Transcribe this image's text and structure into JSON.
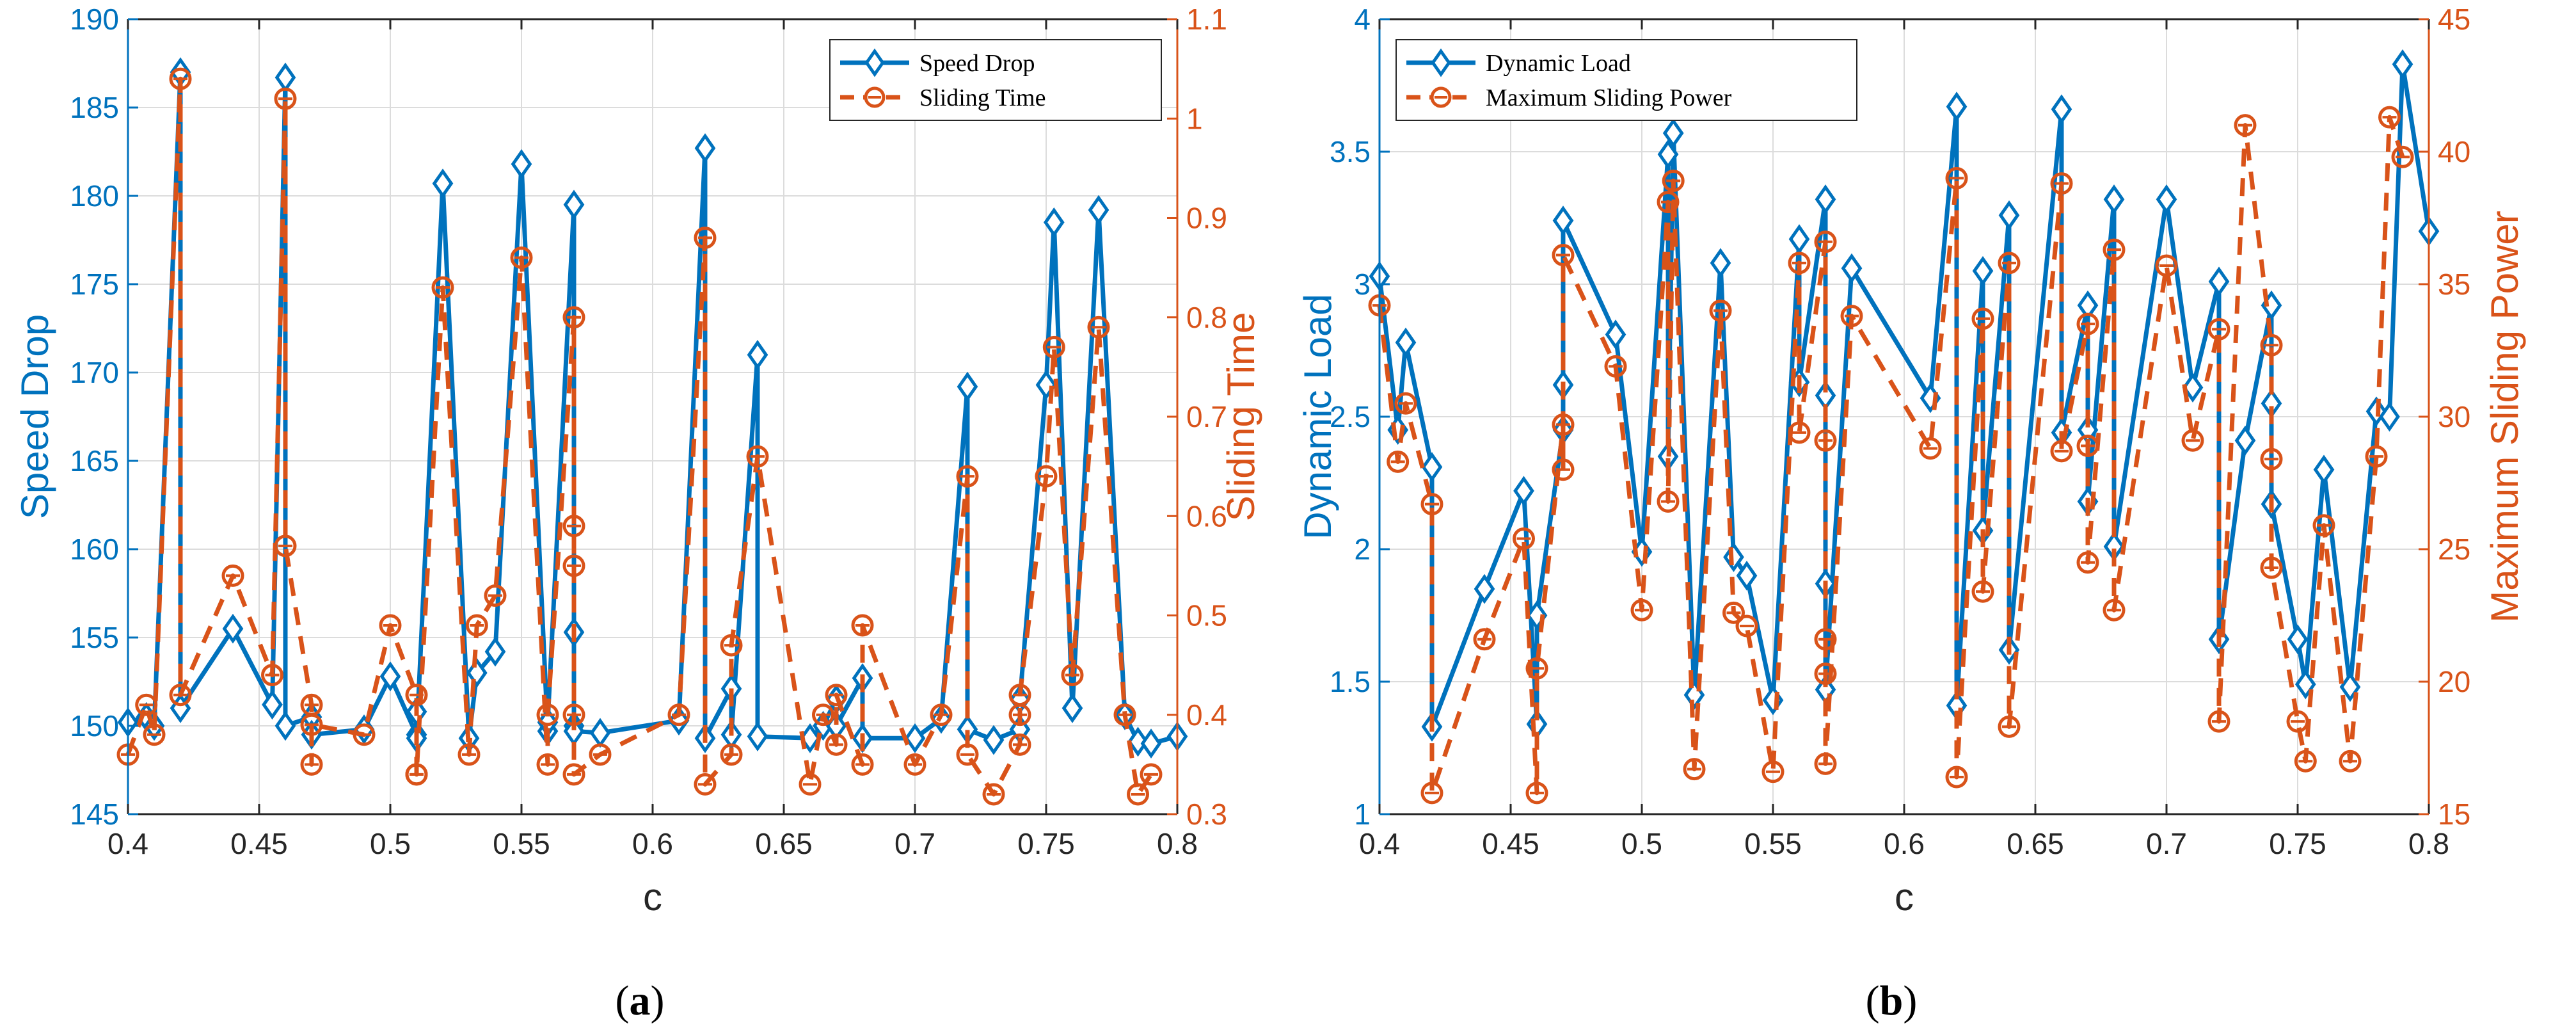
{
  "chart_data": [
    {
      "type": "line",
      "caption_label": "a",
      "xlabel": "c",
      "ylabel_left": "Speed Drop",
      "ylabel_right": "Sliding Time",
      "xlim": [
        0.4,
        0.8
      ],
      "ylim_left": [
        145,
        190
      ],
      "ylim_right": [
        0.3,
        1.1
      ],
      "xticks": [
        0.4,
        0.45,
        0.5,
        0.55,
        0.6,
        0.65,
        0.7,
        0.75,
        0.8
      ],
      "yticks_left": [
        145,
        150,
        155,
        160,
        165,
        170,
        175,
        180,
        185,
        190
      ],
      "yticks_right": [
        0.3,
        0.4,
        0.5,
        0.6,
        0.7,
        0.8,
        0.9,
        1,
        1.1
      ],
      "xtick_labels": [
        "0.4",
        "0.45",
        "0.5",
        "0.55",
        "0.6",
        "0.65",
        "0.7",
        "0.75",
        "0.8"
      ],
      "ytick_labels_left": [
        "145",
        "150",
        "155",
        "160",
        "165",
        "170",
        "175",
        "180",
        "185",
        "190"
      ],
      "ytick_labels_right": [
        "0.3",
        "0.4",
        "0.5",
        "0.6",
        "0.7",
        "0.8",
        "0.9",
        "1",
        "1.1"
      ],
      "legend_position": "top-right",
      "grid": true,
      "series": [
        {
          "name": "Speed Drop",
          "axis": "left",
          "color": "#0072BD",
          "style": "solid",
          "marker": "diamond",
          "x": [
            0.4,
            0.407,
            0.41,
            0.42,
            0.42,
            0.44,
            0.455,
            0.46,
            0.46,
            0.47,
            0.47,
            0.49,
            0.5,
            0.51,
            0.51,
            0.51,
            0.52,
            0.53,
            0.533,
            0.54,
            0.55,
            0.56,
            0.56,
            0.57,
            0.57,
            0.57,
            0.57,
            0.58,
            0.61,
            0.62,
            0.62,
            0.63,
            0.63,
            0.64,
            0.64,
            0.66,
            0.665,
            0.67,
            0.67,
            0.68,
            0.68,
            0.7,
            0.71,
            0.72,
            0.72,
            0.73,
            0.74,
            0.74,
            0.75,
            0.753,
            0.76,
            0.77,
            0.78,
            0.785,
            0.79,
            0.8
          ],
          "values": [
            150.2,
            150.5,
            150.0,
            187.0,
            151.0,
            155.5,
            151.2,
            186.7,
            150.0,
            150.5,
            149.5,
            149.8,
            152.8,
            149.5,
            150.8,
            149.3,
            180.7,
            149.3,
            153.0,
            154.2,
            181.8,
            149.7,
            150.2,
            179.5,
            155.3,
            150.0,
            149.7,
            149.6,
            150.3,
            182.7,
            149.3,
            152.1,
            149.5,
            171.0,
            149.4,
            149.3,
            150.0,
            151.5,
            150.0,
            152.7,
            149.3,
            149.3,
            150.4,
            169.2,
            149.8,
            149.2,
            149.8,
            151.5,
            169.3,
            178.5,
            151.0,
            179.2,
            150.6,
            149.1,
            149.0,
            149.4
          ]
        },
        {
          "name": "Sliding Time",
          "axis": "right",
          "color": "#D95319",
          "style": "dashed",
          "marker": "circle",
          "x": [
            0.4,
            0.407,
            0.41,
            0.42,
            0.42,
            0.44,
            0.455,
            0.46,
            0.46,
            0.47,
            0.47,
            0.47,
            0.49,
            0.5,
            0.51,
            0.51,
            0.51,
            0.52,
            0.53,
            0.533,
            0.54,
            0.55,
            0.56,
            0.56,
            0.57,
            0.57,
            0.57,
            0.57,
            0.57,
            0.58,
            0.61,
            0.62,
            0.62,
            0.63,
            0.63,
            0.64,
            0.66,
            0.665,
            0.67,
            0.67,
            0.68,
            0.68,
            0.7,
            0.71,
            0.72,
            0.72,
            0.73,
            0.74,
            0.74,
            0.74,
            0.75,
            0.753,
            0.76,
            0.77,
            0.78,
            0.785,
            0.79
          ],
          "values": [
            0.36,
            0.41,
            0.38,
            1.04,
            0.42,
            0.54,
            0.44,
            1.02,
            0.57,
            0.41,
            0.35,
            0.39,
            0.38,
            0.49,
            0.42,
            0.34,
            0.34,
            0.83,
            0.36,
            0.49,
            0.52,
            0.86,
            0.35,
            0.4,
            0.8,
            0.59,
            0.55,
            0.4,
            0.34,
            0.36,
            0.4,
            0.88,
            0.33,
            0.36,
            0.47,
            0.66,
            0.33,
            0.4,
            0.37,
            0.42,
            0.35,
            0.49,
            0.35,
            0.4,
            0.64,
            0.36,
            0.32,
            0.37,
            0.4,
            0.42,
            0.64,
            0.77,
            0.44,
            0.79,
            0.4,
            0.32,
            0.34
          ]
        }
      ]
    },
    {
      "type": "line",
      "caption_label": "b",
      "xlabel": "c",
      "ylabel_left": "Dynamic Load",
      "ylabel_right": "Maximum Sliding Power",
      "xlim": [
        0.4,
        0.8
      ],
      "ylim_left": [
        1,
        4
      ],
      "ylim_right": [
        15,
        45
      ],
      "xticks": [
        0.4,
        0.45,
        0.5,
        0.55,
        0.6,
        0.65,
        0.7,
        0.75,
        0.8
      ],
      "yticks_left": [
        1,
        1.5,
        2,
        2.5,
        3,
        3.5,
        4
      ],
      "yticks_right": [
        15,
        20,
        25,
        30,
        35,
        40,
        45
      ],
      "xtick_labels": [
        "0.4",
        "0.45",
        "0.5",
        "0.55",
        "0.6",
        "0.65",
        "0.7",
        "0.75",
        "0.8"
      ],
      "ytick_labels_left": [
        "1",
        "1.5",
        "2",
        "2.5",
        "3",
        "3.5",
        "4"
      ],
      "ytick_labels_right": [
        "15",
        "20",
        "25",
        "30",
        "35",
        "40",
        "45"
      ],
      "legend_position": "top-left",
      "grid": true,
      "series": [
        {
          "name": "Dynamic Load",
          "axis": "left",
          "color": "#0072BD",
          "style": "solid",
          "marker": "diamond",
          "x": [
            0.4,
            0.407,
            0.41,
            0.42,
            0.42,
            0.44,
            0.455,
            0.46,
            0.46,
            0.47,
            0.47,
            0.47,
            0.49,
            0.5,
            0.51,
            0.51,
            0.512,
            0.52,
            0.53,
            0.535,
            0.54,
            0.55,
            0.56,
            0.56,
            0.57,
            0.57,
            0.57,
            0.57,
            0.58,
            0.61,
            0.62,
            0.62,
            0.63,
            0.63,
            0.64,
            0.64,
            0.66,
            0.66,
            0.67,
            0.67,
            0.67,
            0.68,
            0.68,
            0.7,
            0.71,
            0.72,
            0.72,
            0.73,
            0.74,
            0.74,
            0.74,
            0.75,
            0.753,
            0.76,
            0.77,
            0.78,
            0.785,
            0.79,
            0.8
          ],
          "values": [
            3.03,
            2.45,
            2.78,
            2.31,
            1.33,
            1.85,
            2.22,
            1.34,
            1.75,
            2.45,
            2.62,
            3.24,
            2.81,
            1.99,
            3.49,
            2.35,
            3.57,
            1.45,
            3.08,
            1.97,
            1.9,
            1.43,
            3.17,
            2.63,
            3.32,
            2.58,
            1.87,
            1.47,
            3.06,
            2.57,
            3.67,
            1.41,
            3.05,
            2.07,
            3.26,
            1.62,
            3.66,
            2.44,
            2.92,
            2.45,
            2.18,
            3.32,
            2.01,
            3.32,
            2.61,
            3.01,
            1.66,
            2.41,
            2.92,
            2.55,
            2.17,
            1.66,
            1.49,
            2.3,
            1.48,
            2.52,
            2.5,
            3.83,
            3.2
          ]
        },
        {
          "name": "Maximum Sliding Power",
          "axis": "right",
          "color": "#D95319",
          "style": "dashed",
          "marker": "circle",
          "x": [
            0.4,
            0.407,
            0.41,
            0.42,
            0.42,
            0.44,
            0.455,
            0.46,
            0.46,
            0.47,
            0.47,
            0.47,
            0.49,
            0.5,
            0.51,
            0.51,
            0.512,
            0.52,
            0.53,
            0.535,
            0.54,
            0.55,
            0.56,
            0.56,
            0.57,
            0.57,
            0.57,
            0.57,
            0.57,
            0.58,
            0.61,
            0.62,
            0.62,
            0.63,
            0.63,
            0.64,
            0.64,
            0.66,
            0.66,
            0.67,
            0.67,
            0.67,
            0.68,
            0.68,
            0.7,
            0.71,
            0.72,
            0.72,
            0.73,
            0.74,
            0.74,
            0.74,
            0.75,
            0.753,
            0.76,
            0.77,
            0.78,
            0.785,
            0.79
          ],
          "values": [
            34.2,
            28.3,
            30.5,
            26.7,
            15.8,
            21.6,
            25.4,
            15.8,
            20.5,
            29.7,
            28.0,
            36.1,
            31.9,
            22.7,
            38.1,
            26.8,
            38.9,
            16.7,
            34.0,
            22.6,
            22.1,
            16.6,
            35.8,
            29.4,
            36.6,
            29.1,
            21.6,
            20.3,
            16.9,
            33.8,
            28.8,
            39.0,
            16.4,
            33.7,
            23.4,
            35.8,
            18.3,
            38.8,
            28.7,
            33.5,
            28.9,
            24.5,
            36.3,
            22.7,
            35.7,
            29.1,
            33.3,
            18.5,
            41.0,
            32.7,
            28.4,
            24.3,
            18.5,
            17.0,
            25.9,
            17.0,
            28.5,
            41.3,
            39.8
          ]
        }
      ]
    }
  ]
}
